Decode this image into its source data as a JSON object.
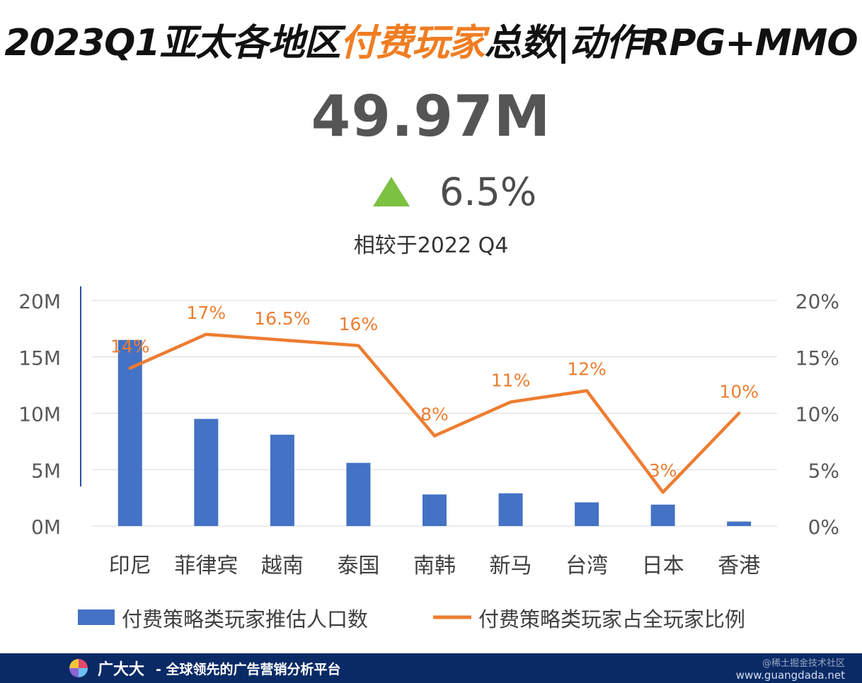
{
  "header": {
    "title_part1": "2023Q1亚太各地区",
    "title_highlight": "付费玩家",
    "title_part2": "总数|动作RPG+MMO",
    "highlight_color": "#f07d22"
  },
  "kpi": {
    "value": "49.97M",
    "change": "6.5%",
    "change_direction": "up",
    "change_icon": "triangle-up-icon",
    "change_color": "#7cc142",
    "compare_text": "相较于2022 Q4"
  },
  "chart_data": {
    "type": "bar",
    "categories": [
      "印尼",
      "菲律宾",
      "越南",
      "泰国",
      "南韩",
      "新马",
      "台湾",
      "日本",
      "香港"
    ],
    "series": [
      {
        "name": "付费策略类玩家推估人口数",
        "type": "bar",
        "axis": "left",
        "color": "#4472c4",
        "values": [
          16.5,
          9.5,
          8.1,
          5.6,
          2.8,
          2.9,
          2.1,
          1.9,
          0.4
        ]
      },
      {
        "name": "付费策略类玩家占全玩家比例",
        "type": "line",
        "axis": "right",
        "color": "#ed7d31",
        "values": [
          14,
          17,
          16.5,
          16,
          8,
          11,
          12,
          3,
          10
        ],
        "labels": [
          "14%",
          "17%",
          "16.5%",
          "16%",
          "8%",
          "11%",
          "12%",
          "3%",
          "10%"
        ]
      }
    ],
    "y_left": {
      "ticks": [
        "0M",
        "5M",
        "10M",
        "15M",
        "20M"
      ],
      "ylim": [
        0,
        20
      ]
    },
    "y_right": {
      "ticks": [
        "0%",
        "5%",
        "10%",
        "15%",
        "20%"
      ],
      "ylim": [
        0,
        20
      ]
    },
    "grid": true,
    "legend_position": "bottom"
  },
  "footer": {
    "brand": "广大大",
    "slogan": "- 全球领先的广告营销分析平台",
    "site": "www.guangdada.net",
    "watermark": "@稀土掘金技术社区",
    "logo_icon": "pie-logo-icon"
  }
}
